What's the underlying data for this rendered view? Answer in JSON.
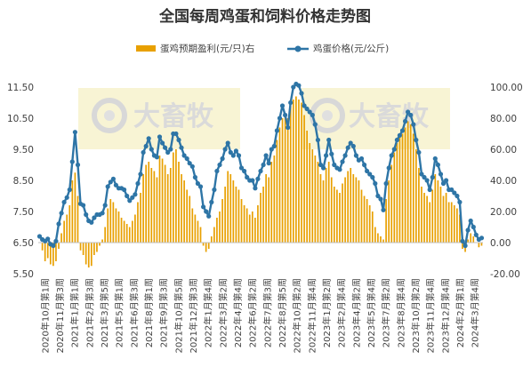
{
  "chart_data": {
    "type": "bar+line",
    "title": "全国每周鸡蛋和饲料价格走势图",
    "legend": {
      "placement": "top-center",
      "items": [
        {
          "name": "蛋鸡预期盈利(元/只)右",
          "mark": "bar",
          "color": "#E8A000"
        },
        {
          "name": "鸡蛋价格(元/公斤)",
          "mark": "line-dot",
          "color": "#2E75A6"
        }
      ]
    },
    "left_axis": {
      "range": [
        5.5,
        11.5
      ],
      "ticks": [
        5.5,
        6.5,
        7.5,
        8.5,
        9.5,
        10.5,
        11.5
      ],
      "tick_labels": [
        "5.50",
        "6.50",
        "7.50",
        "8.50",
        "9.50",
        "10.50",
        "11.50"
      ]
    },
    "right_axis": {
      "range": [
        -20,
        100
      ],
      "ticks": [
        -20,
        0,
        20,
        40,
        60,
        80,
        100
      ],
      "tick_labels": [
        "-20.00",
        "0.00",
        "20.00",
        "40.00",
        "60.00",
        "80.00",
        "100.00"
      ]
    },
    "x_tick_labels": [
      "2020年10月第1周",
      "2020年11月第3周",
      "2021年1月第1周",
      "2021年2月第3周",
      "2021年3月第5周",
      "2021年5月第1周",
      "2021年6月第3周",
      "2021年8月第1周",
      "2021年9月第3周",
      "2021年10月第5周",
      "2021年12月第3周",
      "2022年1月第4周",
      "2022年3月第2周",
      "2022年4月第4周",
      "2022年6月第2周",
      "2022年7月第3周",
      "2022年8月第5周",
      "2022年10月第2周",
      "2022年11月第4周",
      "2023年1月第2周",
      "2023年2月第4周",
      "2023年4月第2周",
      "2023年5月第4周",
      "2023年7月第2周",
      "2023年8月第4周",
      "2023年10月第2周",
      "2023年11月第4周",
      "2023年12月第4周",
      "2024年2月第1周",
      "2024年3月第4周"
    ],
    "grid": false,
    "watermark": "大畜牧",
    "series_price": {
      "name": "鸡蛋价格(元/公斤)",
      "axis": "left",
      "values": [
        6.7,
        6.6,
        6.55,
        6.62,
        6.45,
        6.4,
        6.55,
        7.1,
        7.45,
        7.8,
        7.95,
        8.2,
        9.1,
        10.05,
        9.0,
        7.75,
        7.7,
        7.4,
        7.2,
        7.15,
        7.3,
        7.4,
        7.4,
        7.45,
        7.7,
        8.3,
        8.45,
        8.55,
        8.35,
        8.25,
        8.25,
        8.2,
        8.0,
        7.85,
        7.95,
        8.05,
        8.4,
        8.7,
        9.4,
        9.6,
        9.85,
        9.5,
        9.3,
        9.25,
        9.9,
        9.7,
        9.55,
        9.4,
        9.5,
        10.0,
        10.0,
        9.8,
        9.55,
        9.3,
        9.2,
        9.05,
        8.95,
        8.6,
        8.4,
        8.3,
        7.65,
        7.5,
        7.35,
        7.8,
        8.2,
        8.8,
        9.0,
        9.2,
        9.5,
        9.7,
        9.4,
        9.3,
        9.45,
        9.3,
        8.9,
        8.8,
        8.6,
        8.5,
        8.5,
        8.25,
        8.55,
        8.8,
        9.0,
        9.3,
        9.05,
        9.5,
        9.6,
        10.1,
        10.5,
        10.9,
        10.6,
        10.2,
        11.0,
        11.5,
        11.6,
        11.55,
        11.3,
        10.9,
        10.8,
        10.7,
        10.6,
        10.3,
        9.8,
        9.0,
        8.9,
        9.3,
        9.8,
        9.35,
        9.0,
        8.9,
        8.85,
        9.1,
        9.3,
        9.55,
        9.7,
        9.6,
        9.3,
        9.15,
        9.2,
        9.0,
        8.8,
        8.7,
        8.6,
        8.4,
        8.0,
        7.9,
        7.55,
        8.4,
        8.9,
        9.3,
        9.5,
        9.8,
        9.95,
        10.1,
        10.4,
        10.7,
        10.6,
        10.3,
        9.8,
        9.4,
        8.7,
        8.6,
        8.5,
        8.2,
        8.6,
        9.2,
        9.0,
        8.7,
        8.4,
        8.5,
        8.2,
        8.2,
        8.1,
        8.0,
        7.8,
        6.55,
        6.4,
        6.9,
        7.2,
        7.0,
        6.75,
        6.6,
        6.65
      ]
    },
    "series_profit": {
      "name": "蛋鸡预期盈利(元/只)右",
      "axis": "right",
      "values": [
        0,
        -5,
        -12,
        -10,
        -14,
        -15,
        -12,
        -4,
        6,
        14,
        18,
        24,
        40,
        45,
        30,
        -5,
        -8,
        -14,
        -16,
        -15,
        -8,
        -6,
        -2,
        2,
        10,
        22,
        28,
        26,
        22,
        20,
        16,
        14,
        12,
        10,
        14,
        18,
        26,
        32,
        44,
        50,
        52,
        48,
        46,
        42,
        56,
        54,
        50,
        44,
        48,
        58,
        60,
        52,
        44,
        40,
        34,
        30,
        22,
        18,
        14,
        10,
        -2,
        -6,
        -4,
        4,
        10,
        16,
        20,
        28,
        36,
        46,
        44,
        40,
        36,
        34,
        28,
        24,
        22,
        18,
        20,
        16,
        24,
        32,
        36,
        44,
        42,
        52,
        56,
        66,
        74,
        80,
        82,
        80,
        88,
        92,
        94,
        92,
        90,
        82,
        72,
        64,
        60,
        56,
        52,
        44,
        40,
        48,
        52,
        42,
        36,
        34,
        32,
        38,
        42,
        46,
        48,
        44,
        42,
        40,
        34,
        30,
        28,
        24,
        20,
        10,
        6,
        4,
        2,
        28,
        40,
        50,
        58,
        64,
        68,
        70,
        74,
        78,
        76,
        70,
        60,
        48,
        36,
        32,
        30,
        26,
        34,
        44,
        40,
        36,
        30,
        32,
        26,
        26,
        24,
        22,
        18,
        -4,
        -6,
        2,
        6,
        4,
        0,
        -3,
        -2
      ]
    }
  }
}
